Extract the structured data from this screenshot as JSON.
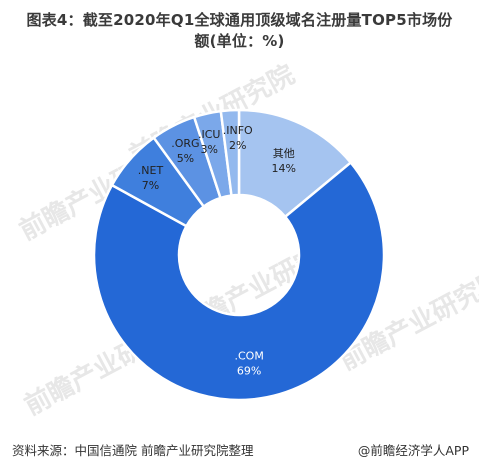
{
  "title": {
    "line1": "图表4：截至2020年Q1全球通用顶级域名注册量TOP5市场份",
    "line2": "额(单位：%)"
  },
  "chart_data": {
    "type": "pie",
    "donut": true,
    "title": "图表4：截至2020年Q1全球通用顶级域名注册量TOP5市场份额(单位：%)",
    "unit": "%",
    "slices": [
      {
        "label": "其他",
        "value": 14,
        "value_label": "14%",
        "color": "#a5c4f0"
      },
      {
        "label": ".COM",
        "value": 69,
        "value_label": "69%",
        "color": "#2468d6"
      },
      {
        "label": ".NET",
        "value": 7,
        "value_label": "7%",
        "color": "#3f7fdd"
      },
      {
        "label": ".ORG",
        "value": 5,
        "value_label": "5%",
        "color": "#5c92e3"
      },
      {
        "label": ".ICU",
        "value": 3,
        "value_label": "3%",
        "color": "#7ba8ea"
      },
      {
        "label": ".INFO",
        "value": 2,
        "value_label": "2%",
        "color": "#93b9ee"
      }
    ]
  },
  "footer": {
    "source": "资料来源：中国信通院  前瞻产业研究院整理",
    "brand": "@前瞻经济学人APP"
  },
  "watermark_text": "前瞻产业研究院"
}
